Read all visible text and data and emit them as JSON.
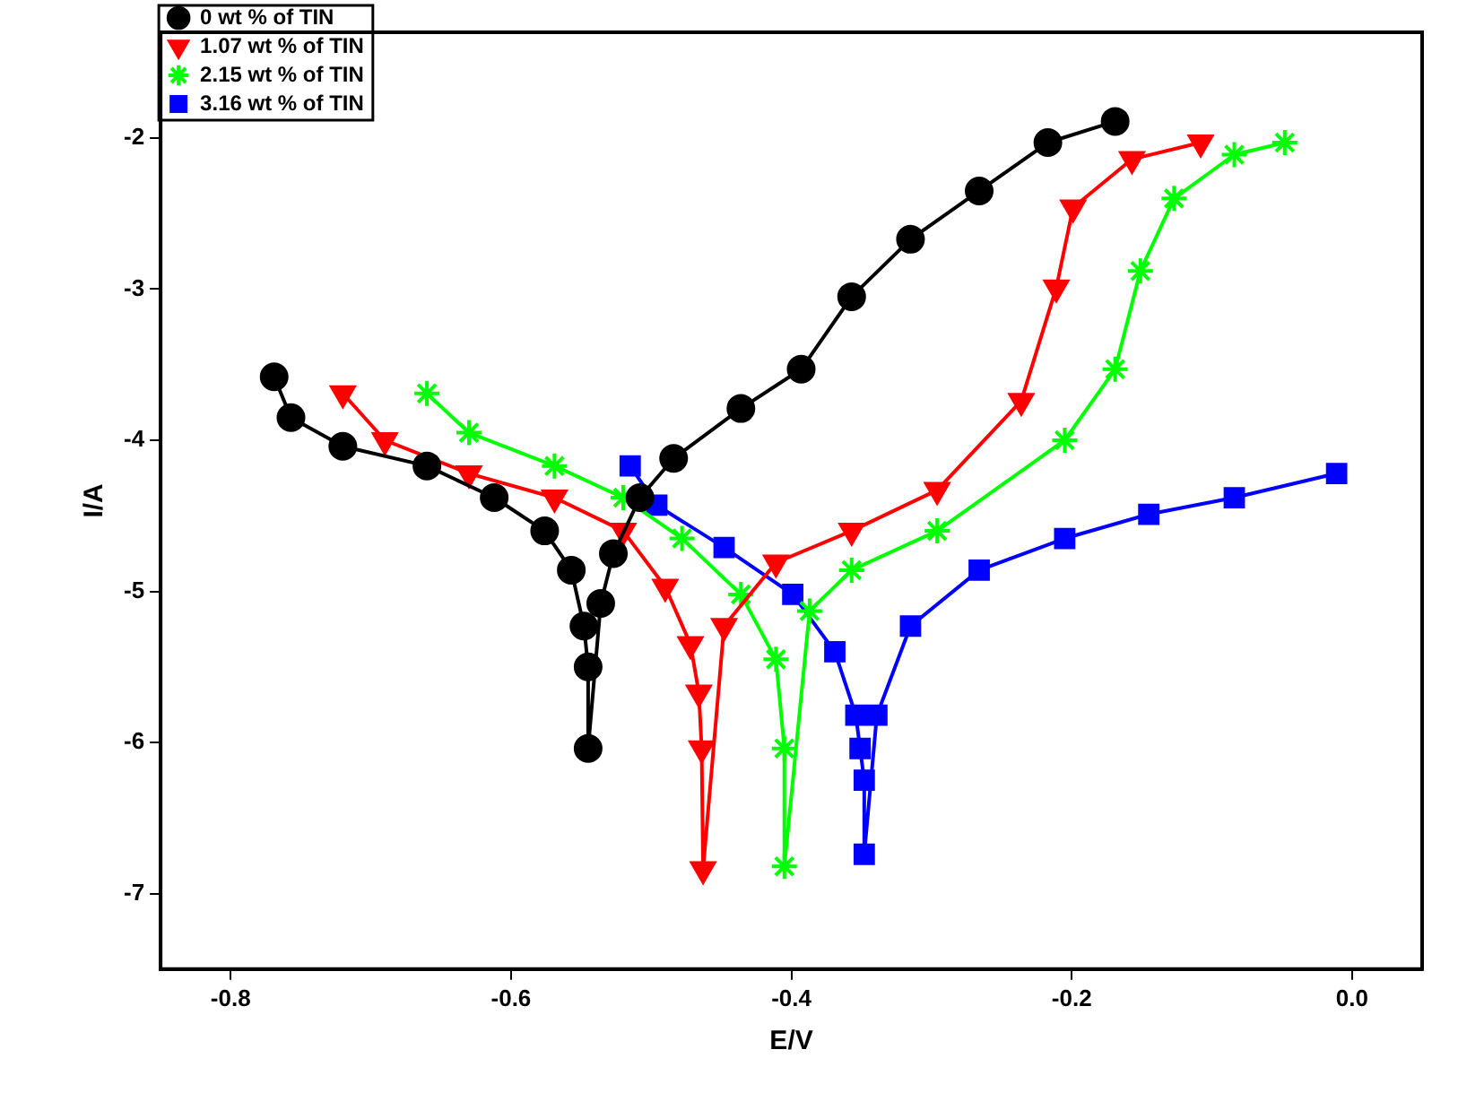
{
  "chart_data": {
    "type": "line",
    "xlabel": "E/V",
    "ylabel": "I/A",
    "xlim": [
      -0.85,
      0.05
    ],
    "ylim": [
      -7.5,
      -1.3
    ],
    "xticks": [
      {
        "value": -0.8,
        "label": "-0.8"
      },
      {
        "value": -0.6,
        "label": "-0.6"
      },
      {
        "value": -0.4,
        "label": "-0.4"
      },
      {
        "value": -0.2,
        "label": "-0.2"
      },
      {
        "value": 0,
        "label": "0.0"
      }
    ],
    "yticks": [
      -7,
      -6,
      -5,
      -4,
      -3,
      -2
    ],
    "grid": false,
    "legend": "top left",
    "line_style": "solid",
    "series": [
      {
        "name": "0 wt % of TIN",
        "color": "#000000",
        "marker": "circle",
        "x": [
          -0.769,
          -0.757,
          -0.72,
          -0.66,
          -0.612,
          -0.576,
          -0.557,
          -0.548,
          -0.545,
          -0.545,
          -0.536,
          -0.527,
          -0.508,
          -0.484,
          -0.436,
          -0.393,
          -0.357,
          -0.315,
          -0.266,
          -0.217,
          -0.169
        ],
        "values": [
          -3.58,
          -3.85,
          -4.04,
          -4.17,
          -4.38,
          -4.6,
          -4.86,
          -5.23,
          -5.5,
          -6.04,
          -5.08,
          -4.75,
          -4.38,
          -4.12,
          -3.79,
          -3.53,
          -3.05,
          -2.67,
          -2.35,
          -2.03,
          -1.89
        ]
      },
      {
        "name": "1.07 wt % of TIN",
        "color": "#ff0000",
        "marker": "triangle-down",
        "x": [
          -0.72,
          -0.69,
          -0.63,
          -0.569,
          -0.52,
          -0.49,
          -0.472,
          -0.466,
          -0.464,
          -0.463,
          -0.448,
          -0.411,
          -0.357,
          -0.296,
          -0.236,
          -0.211,
          -0.199,
          -0.157,
          -0.108
        ],
        "values": [
          -3.69,
          -4.0,
          -4.22,
          -4.38,
          -4.6,
          -4.97,
          -5.35,
          -5.67,
          -6.04,
          -6.84,
          -5.23,
          -4.81,
          -4.6,
          -4.33,
          -3.74,
          -2.99,
          -2.46,
          -2.14,
          -2.03
        ]
      },
      {
        "name": "2.15 wt % of TIN",
        "color": "#00ff00",
        "marker": "cross",
        "x": [
          -0.66,
          -0.63,
          -0.569,
          -0.52,
          -0.478,
          -0.436,
          -0.411,
          -0.405,
          -0.405,
          -0.387,
          -0.357,
          -0.296,
          -0.205,
          -0.169,
          -0.151,
          -0.127,
          -0.084,
          -0.048
        ],
        "values": [
          -3.69,
          -3.95,
          -4.17,
          -4.38,
          -4.65,
          -5.02,
          -5.45,
          -6.04,
          -6.82,
          -5.13,
          -4.86,
          -4.6,
          -4.0,
          -3.53,
          -2.88,
          -2.4,
          -2.11,
          -2.03
        ]
      },
      {
        "name": "3.16 wt % of TIN",
        "color": "#0000ff",
        "marker": "square",
        "x": [
          -0.515,
          -0.496,
          -0.448,
          -0.399,
          -0.369,
          -0.354,
          -0.351,
          -0.348,
          -0.348,
          -0.339,
          -0.315,
          -0.266,
          -0.205,
          -0.145,
          -0.084,
          -0.011
        ],
        "values": [
          -4.17,
          -4.43,
          -4.71,
          -5.02,
          -5.4,
          -5.82,
          -6.04,
          -6.25,
          -6.74,
          -5.82,
          -5.23,
          -4.86,
          -4.65,
          -4.49,
          -4.38,
          -4.22
        ]
      }
    ]
  }
}
